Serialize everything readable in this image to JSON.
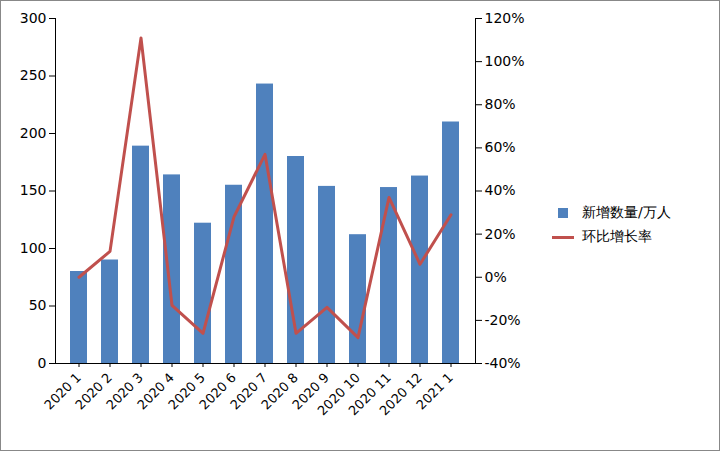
{
  "chart_data": {
    "type": "bar",
    "categories": [
      "2020 1",
      "2020 2",
      "2020 3",
      "2020 4",
      "2020 5",
      "2020 6",
      "2020 7",
      "2020 8",
      "2020 9",
      "2020 10",
      "2020 11",
      "2020 12",
      "2021 1"
    ],
    "series": [
      {
        "name": "新增数量/万人",
        "type": "bar",
        "color": "#4f81bd",
        "values": [
          80,
          90,
          189,
          164,
          122,
          155,
          243,
          180,
          154,
          112,
          153,
          163,
          210
        ]
      },
      {
        "name": "环比增长率",
        "type": "line",
        "axis": "y2",
        "color": "#c0504d",
        "values": [
          0,
          12,
          111,
          -13,
          -26,
          28,
          57,
          -26,
          -14,
          -28,
          37,
          6,
          29
        ]
      }
    ],
    "ylim": [
      0,
      300
    ],
    "yticks": [
      0,
      50,
      100,
      150,
      200,
      250,
      300
    ],
    "y2lim": [
      -40,
      120
    ],
    "y2ticks": [
      {
        "value": -40,
        "label": "-40%"
      },
      {
        "value": -20,
        "label": "-20%"
      },
      {
        "value": 0,
        "label": "0%"
      },
      {
        "value": 20,
        "label": "20%"
      },
      {
        "value": 40,
        "label": "40%"
      },
      {
        "value": 60,
        "label": "60%"
      },
      {
        "value": 80,
        "label": "80%"
      },
      {
        "value": 100,
        "label": "100%"
      },
      {
        "value": 120,
        "label": "120%"
      }
    ],
    "grid": false,
    "legend": "right"
  }
}
